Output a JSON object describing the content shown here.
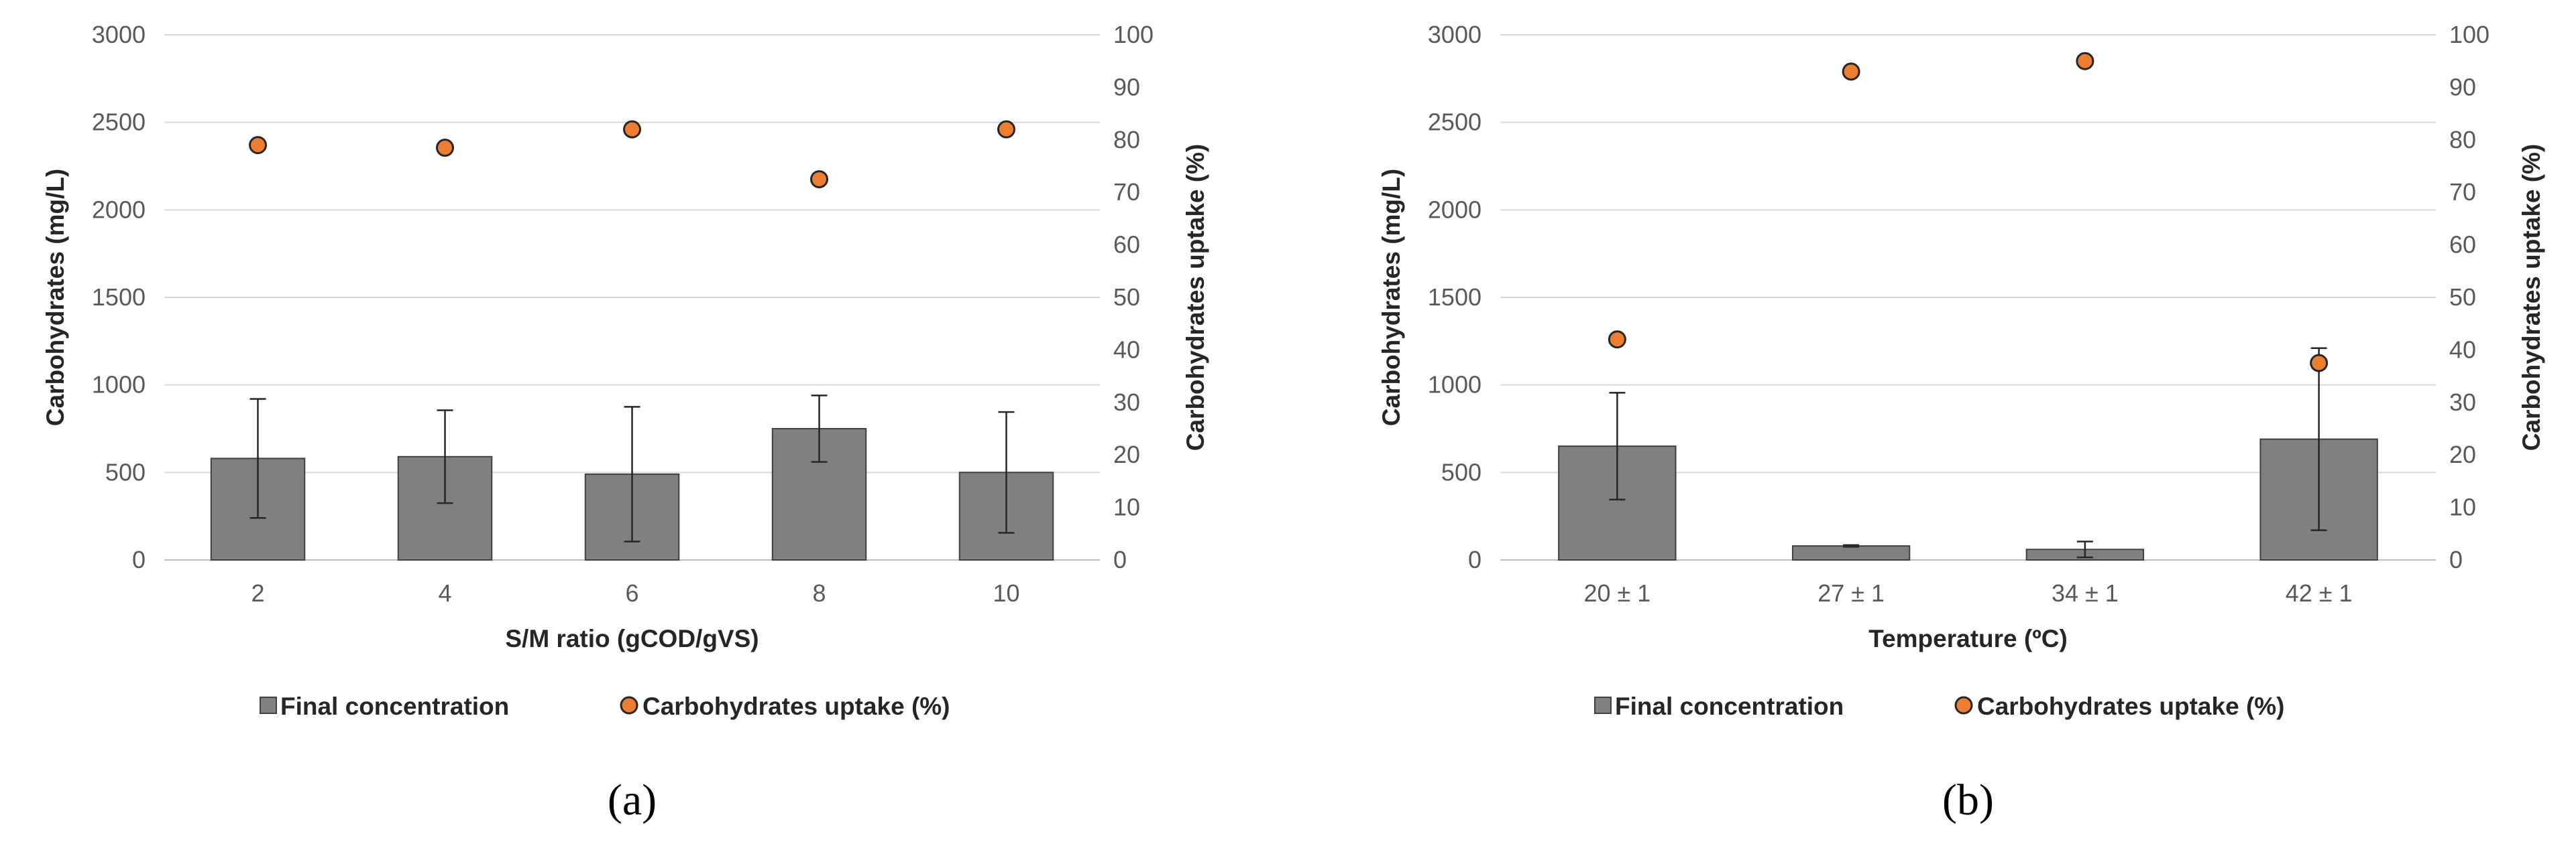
{
  "colors": {
    "bar": "#808080",
    "bar_edge": "#404040",
    "marker": "#ed7d31",
    "marker_edge": "#262626"
  },
  "chart_data": [
    {
      "type": "bar",
      "panel_label": "(a)",
      "categories": [
        "2",
        "4",
        "6",
        "8",
        "10"
      ],
      "xlabel": "S/M ratio (gCOD/gVS)",
      "ylabel": "Carbohydrates (mg/L)",
      "y2label": "Carbohydrates uptake (%)",
      "ylim": [
        0,
        3000
      ],
      "y2lim": [
        0,
        100
      ],
      "yticks": [
        "0",
        "500",
        "1000",
        "1500",
        "2000",
        "2500",
        "3000"
      ],
      "y2ticks": [
        "0",
        "10",
        "20",
        "30",
        "40",
        "50",
        "60",
        "70",
        "80",
        "90",
        "100"
      ],
      "grid": true,
      "legend_position": "bottom",
      "series": [
        {
          "name": "Final concentration",
          "kind": "bar",
          "axis": "left",
          "values": [
            580,
            590,
            490,
            750,
            500
          ],
          "errors": [
            340,
            265,
            385,
            190,
            345
          ]
        },
        {
          "name": "Carbohydrates uptake (%)",
          "kind": "scatter",
          "axis": "right",
          "values": [
            79,
            78.5,
            82,
            72.5,
            82
          ]
        }
      ]
    },
    {
      "type": "bar",
      "panel_label": "(b)",
      "categories": [
        "20 ± 1",
        "27 ± 1",
        "34 ± 1",
        "42 ± 1"
      ],
      "xlabel": "Temperature (ºC)",
      "ylabel": "Carbohydrates (mg/L)",
      "y2label": "Carbohydrates uptake (%)",
      "ylim": [
        0,
        3000
      ],
      "y2lim": [
        0,
        100
      ],
      "yticks": [
        "0",
        "500",
        "1000",
        "1500",
        "2000",
        "2500",
        "3000"
      ],
      "y2ticks": [
        "0",
        "10",
        "20",
        "30",
        "40",
        "50",
        "60",
        "70",
        "80",
        "90",
        "100"
      ],
      "grid": true,
      "legend_position": "bottom",
      "series": [
        {
          "name": "Final concentration",
          "kind": "bar",
          "axis": "left",
          "values": [
            650,
            80,
            60,
            690
          ],
          "errors": [
            305,
            5,
            45,
            520
          ]
        },
        {
          "name": "Carbohydrates uptake (%)",
          "kind": "scatter",
          "axis": "right",
          "values": [
            42,
            93,
            95,
            37.5
          ]
        }
      ]
    }
  ]
}
